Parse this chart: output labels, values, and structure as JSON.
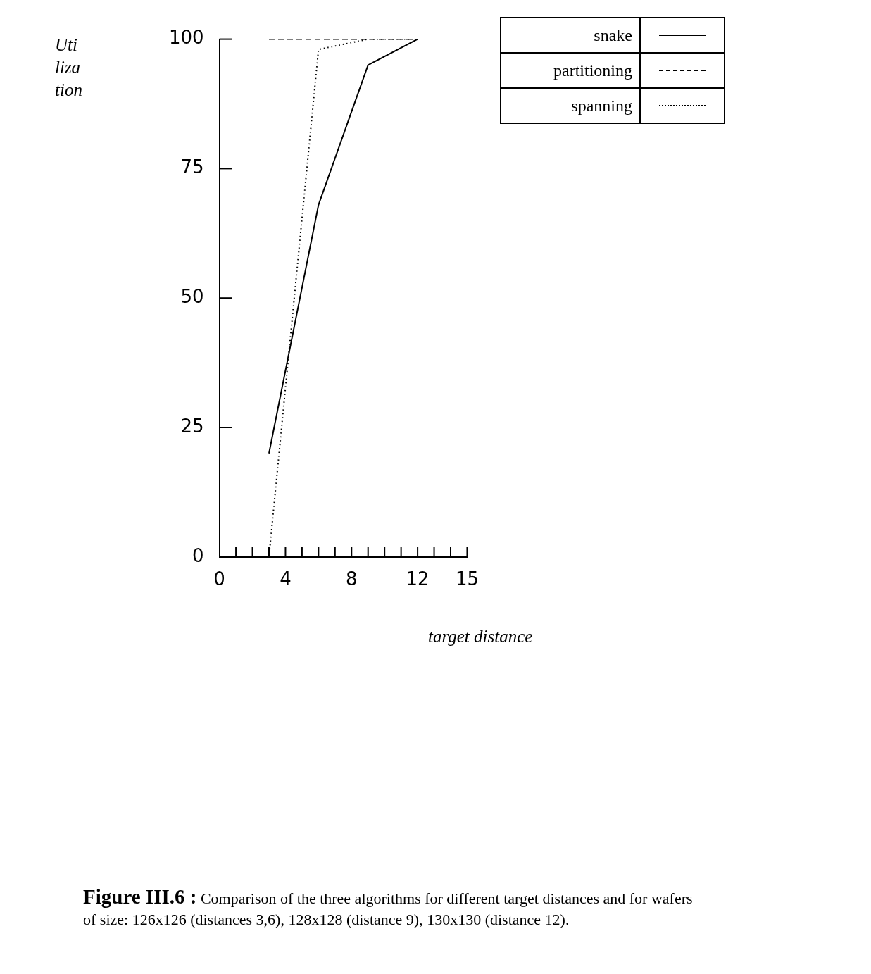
{
  "chart_data": {
    "type": "line",
    "title": "Figure III.6 :",
    "ylabel": "Uti liza tion",
    "xlabel": "target distance",
    "annotations": [
      "Comparison of the three algorithms for different target distances and for wafers of size: 126x126 (distances 3,6), 128x128 (distance 9), 130x130 (distance 12)."
    ],
    "xlim": [
      0,
      15
    ],
    "xticks": [
      0,
      {
        "value": 1,
        "label": null
      },
      {
        "value": 2,
        "label": null
      },
      {
        "value": 3,
        "label": null
      },
      4,
      {
        "value": 5,
        "label": null
      },
      {
        "value": 6,
        "label": null
      },
      {
        "value": 7,
        "label": null
      },
      8,
      {
        "value": 9,
        "label": null
      },
      {
        "value": 10,
        "label": null
      },
      {
        "value": 11,
        "label": null
      },
      12,
      {
        "value": 13,
        "label": null
      },
      {
        "value": 14,
        "label": null
      },
      15
    ],
    "ylim": [
      0,
      100
    ],
    "yticks": [
      0,
      25,
      50,
      75,
      100
    ],
    "grid": false,
    "legend": "top right",
    "marker": "none",
    "series": [
      {
        "name": "snake",
        "color": "#000000",
        "line_style": "solid",
        "x": [
          3,
          6,
          9,
          12
        ],
        "values": [
          20,
          68,
          95,
          100
        ]
      },
      {
        "name": "partitioning",
        "color": "#000000",
        "line_style": "dashed",
        "x": [
          3,
          6,
          9,
          12
        ],
        "values": [
          100,
          100,
          100,
          100
        ]
      },
      {
        "name": "spanning",
        "color": "#000000",
        "line_style": "dotted",
        "x": [
          3,
          6,
          9,
          12
        ],
        "values": [
          0,
          98,
          100,
          100
        ]
      }
    ]
  }
}
